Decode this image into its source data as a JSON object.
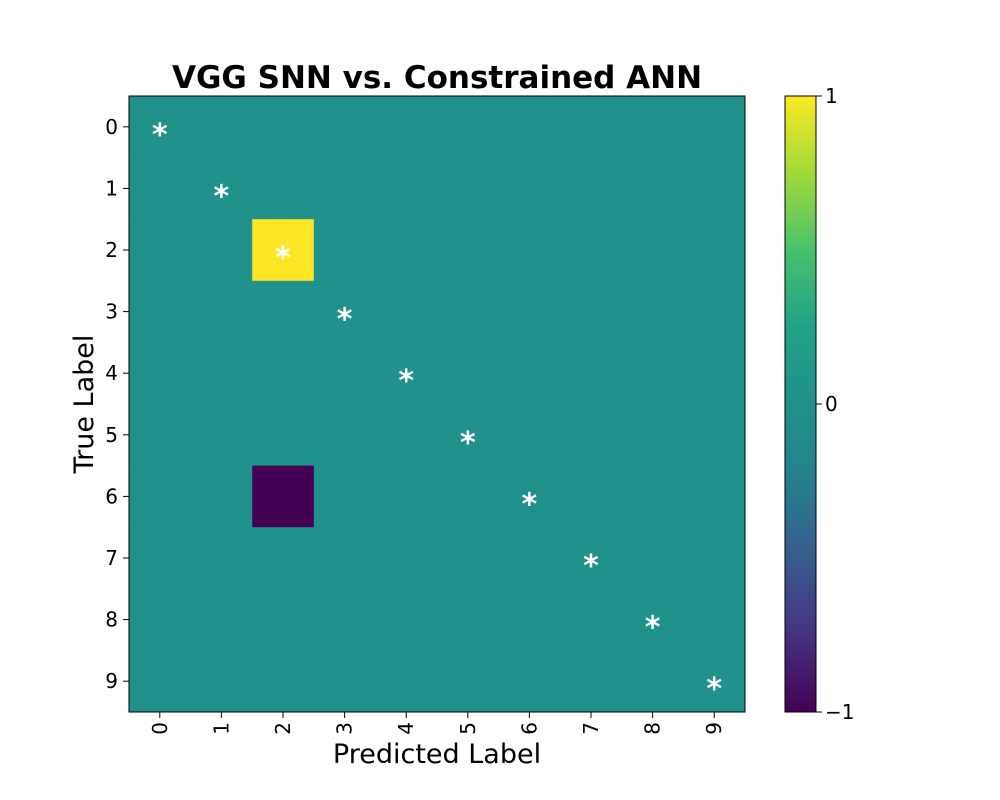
{
  "chart_data": {
    "type": "heatmap",
    "title": "VGG SNN vs. Constrained ANN",
    "xlabel": "Predicted Label",
    "ylabel": "True Label",
    "x_categories": [
      "0",
      "1",
      "2",
      "3",
      "4",
      "5",
      "6",
      "7",
      "8",
      "9"
    ],
    "y_categories": [
      "0",
      "1",
      "2",
      "3",
      "4",
      "5",
      "6",
      "7",
      "8",
      "9"
    ],
    "values": [
      [
        0,
        0,
        0,
        0,
        0,
        0,
        0,
        0,
        0,
        0
      ],
      [
        0,
        0,
        0,
        0,
        0,
        0,
        0,
        0,
        0,
        0
      ],
      [
        0,
        0,
        1,
        0,
        0,
        0,
        0,
        0,
        0,
        0
      ],
      [
        0,
        0,
        0,
        0,
        0,
        0,
        0,
        0,
        0,
        0
      ],
      [
        0,
        0,
        0,
        0,
        0,
        0,
        0,
        0,
        0,
        0
      ],
      [
        0,
        0,
        0,
        0,
        0,
        0,
        0,
        0,
        0,
        0
      ],
      [
        0,
        0,
        -1,
        0,
        0,
        0,
        0,
        0,
        0,
        0
      ],
      [
        0,
        0,
        0,
        0,
        0,
        0,
        0,
        0,
        0,
        0
      ],
      [
        0,
        0,
        0,
        0,
        0,
        0,
        0,
        0,
        0,
        0
      ],
      [
        0,
        0,
        0,
        0,
        0,
        0,
        0,
        0,
        0,
        0
      ]
    ],
    "annotations": [
      {
        "row": 0,
        "col": 0,
        "text": "*"
      },
      {
        "row": 1,
        "col": 1,
        "text": "*"
      },
      {
        "row": 2,
        "col": 2,
        "text": "*"
      },
      {
        "row": 3,
        "col": 3,
        "text": "*"
      },
      {
        "row": 4,
        "col": 4,
        "text": "*"
      },
      {
        "row": 5,
        "col": 5,
        "text": "*"
      },
      {
        "row": 6,
        "col": 6,
        "text": "*"
      },
      {
        "row": 7,
        "col": 7,
        "text": "*"
      },
      {
        "row": 8,
        "col": 8,
        "text": "*"
      },
      {
        "row": 9,
        "col": 9,
        "text": "*"
      }
    ],
    "colorbar": {
      "range": [
        -1,
        1
      ],
      "ticks": [
        1,
        0,
        -1
      ],
      "tick_labels": [
        "1",
        "0",
        "−1"
      ],
      "colormap": "viridis"
    },
    "colors": {
      "zero": "#21918c",
      "max": "#fde725",
      "min": "#440154",
      "annotation": "#ffffff"
    },
    "grid": false
  }
}
